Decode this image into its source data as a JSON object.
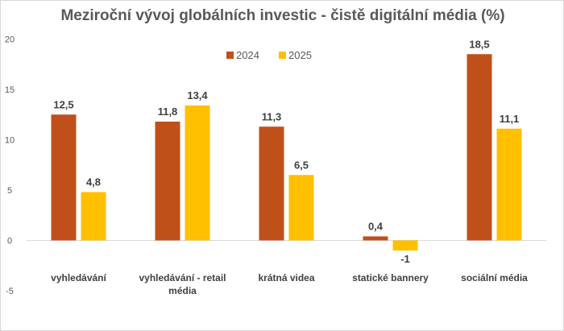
{
  "chart_data": {
    "type": "bar",
    "title": "Meziroční vývoj globálních investic - čistě digitální média (%)",
    "categories": [
      "vyhledávání",
      "vyhledávání - retail média",
      "krátná videa",
      "statické bannery",
      "sociální média"
    ],
    "category_lines": [
      [
        "vyhledávání"
      ],
      [
        "vyhledávání - retail",
        "média"
      ],
      [
        "krátná videa"
      ],
      [
        "statické bannery"
      ],
      [
        "sociální média"
      ]
    ],
    "series": [
      {
        "name": "2024",
        "color": "#C0501A",
        "values": [
          12.5,
          11.8,
          11.3,
          0.4,
          18.5
        ],
        "labels": [
          "12,5",
          "11,8",
          "11,3",
          "0,4",
          "18,5"
        ]
      },
      {
        "name": "2025",
        "color": "#FFC000",
        "values": [
          4.8,
          13.4,
          6.5,
          -1,
          11.1
        ],
        "labels": [
          "4,8",
          "13,4",
          "6,5",
          "-1",
          "11,1"
        ]
      }
    ],
    "negative_label_color": "#E00000",
    "ylim": [
      -5,
      20
    ],
    "yticks": [
      "-5",
      "0",
      "5",
      "10",
      "15",
      "20"
    ],
    "ytick_values": [
      -5,
      0,
      5,
      10,
      15,
      20
    ],
    "legend": "top-center",
    "grid": false
  }
}
